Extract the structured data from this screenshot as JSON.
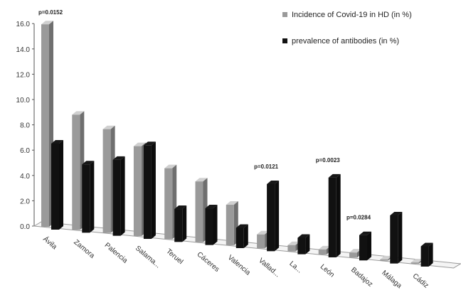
{
  "chart_data": {
    "type": "bar",
    "style": "3d-clustered",
    "categories": [
      "Ávila",
      "Zamora",
      "Palencia",
      "Salama...",
      "Teruel",
      "Cáceres",
      "Valencia",
      "Vallad...",
      "La...",
      "León",
      "Badajoz",
      "Málaga",
      "Cádiz"
    ],
    "series": [
      {
        "name": "Incidence of Covid-19 in HD (in %)",
        "color": "#9a9a9a",
        "values": [
          16.0,
          9.1,
          8.2,
          7.1,
          5.6,
          4.8,
          3.2,
          1.1,
          0.5,
          0.4,
          0.4,
          0.1,
          0.1
        ]
      },
      {
        "name": "prevalence of antibodies (in %)",
        "color": "#111111",
        "values": [
          6.8,
          5.4,
          6.0,
          7.4,
          2.6,
          2.9,
          1.6,
          5.3,
          1.3,
          6.3,
          2.0,
          3.8,
          1.6
        ]
      }
    ],
    "ylim": [
      0,
      16
    ],
    "yticks": [
      "0.0",
      "2.0",
      "4.0",
      "6.0",
      "8.0",
      "10.0",
      "12.0",
      "14.0",
      "16.0"
    ],
    "legend_position": "top-right",
    "annotations": [
      {
        "category": "Ávila",
        "text": "p=0.0152"
      },
      {
        "category": "Vallad...",
        "text": "p=0.0121"
      },
      {
        "category": "León",
        "text": "p=0.0023"
      },
      {
        "category": "Badajoz",
        "text": "p=0.0284"
      }
    ]
  }
}
